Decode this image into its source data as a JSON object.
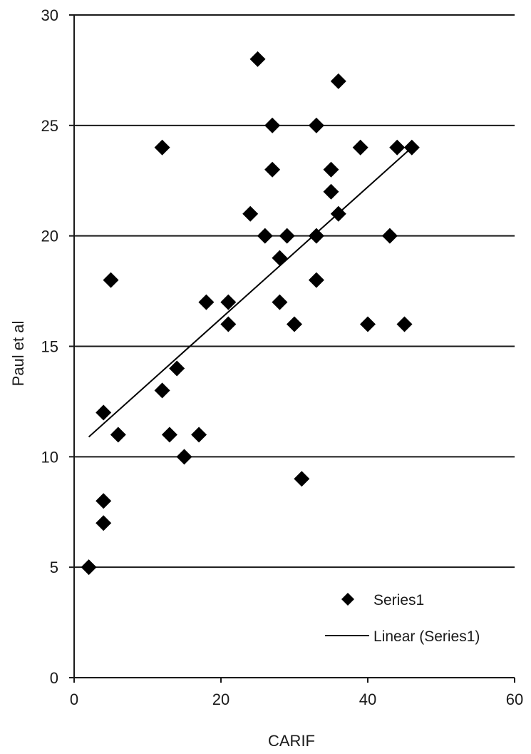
{
  "chart_data": {
    "type": "scatter",
    "xlabel": "CARIF",
    "ylabel": "Paul et al",
    "xlim": [
      0,
      60
    ],
    "ylim": [
      0,
      30
    ],
    "xticks": [
      0,
      20,
      40,
      60
    ],
    "yticks": [
      0,
      5,
      10,
      15,
      20,
      25,
      30
    ],
    "grid": "horizontal",
    "legend_position": "bottom-right",
    "series": [
      {
        "name": "Series1",
        "marker": "diamond",
        "color": "#000000",
        "points": [
          [
            2,
            5
          ],
          [
            4,
            7
          ],
          [
            4,
            8
          ],
          [
            4,
            12
          ],
          [
            5,
            18
          ],
          [
            6,
            11
          ],
          [
            12,
            24
          ],
          [
            12,
            13
          ],
          [
            13,
            11
          ],
          [
            14,
            14
          ],
          [
            15,
            10
          ],
          [
            17,
            11
          ],
          [
            18,
            17
          ],
          [
            21,
            17
          ],
          [
            21,
            16
          ],
          [
            24,
            21
          ],
          [
            25,
            28
          ],
          [
            26,
            20
          ],
          [
            27,
            25
          ],
          [
            27,
            23
          ],
          [
            28,
            19
          ],
          [
            28,
            17
          ],
          [
            29,
            20
          ],
          [
            30,
            16
          ],
          [
            31,
            9
          ],
          [
            33,
            25
          ],
          [
            33,
            20
          ],
          [
            33,
            18
          ],
          [
            35,
            23
          ],
          [
            35,
            22
          ],
          [
            36,
            27
          ],
          [
            36,
            21
          ],
          [
            39,
            24
          ],
          [
            40,
            16
          ],
          [
            43,
            20
          ],
          [
            44,
            24
          ],
          [
            45,
            16
          ],
          [
            46,
            24
          ]
        ]
      }
    ],
    "trendline": {
      "name": "Linear (Series1)",
      "type": "linear",
      "from": [
        2,
        10.9
      ],
      "to": [
        46,
        24
      ]
    }
  }
}
